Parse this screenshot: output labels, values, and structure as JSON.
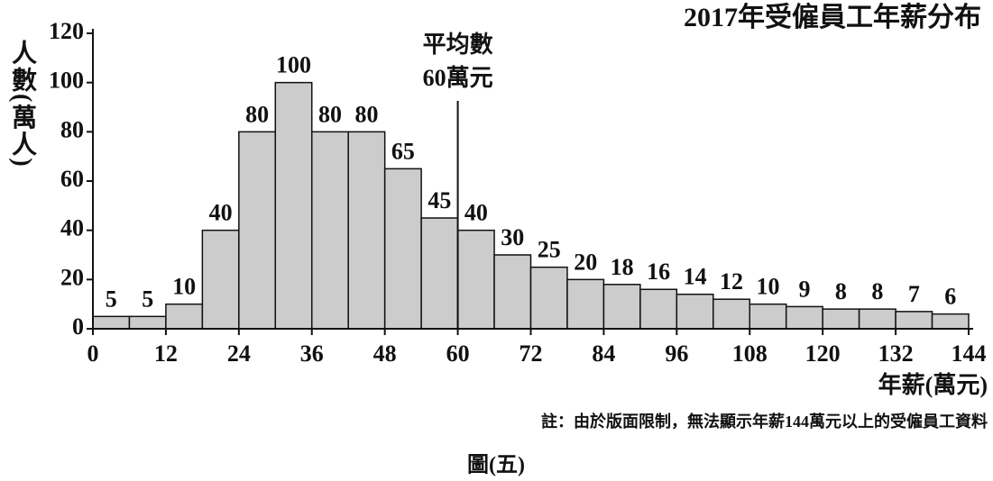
{
  "chart_data": {
    "type": "histogram",
    "title": "2017年受僱員工年薪分布",
    "y_label": "人數(萬人)",
    "x_label": "年薪(萬元)",
    "bins": [
      0,
      6,
      12,
      18,
      24,
      30,
      36,
      42,
      48,
      54,
      60,
      66,
      72,
      78,
      84,
      90,
      96,
      102,
      108,
      114,
      120,
      126,
      132,
      138,
      144
    ],
    "values": [
      5,
      5,
      10,
      40,
      80,
      100,
      80,
      80,
      65,
      45,
      40,
      30,
      25,
      20,
      18,
      16,
      14,
      12,
      10,
      9,
      8,
      8,
      7,
      6
    ],
    "color": "#cccccc",
    "xlim": [
      0,
      144
    ],
    "xticks": [
      0,
      12,
      24,
      36,
      48,
      60,
      72,
      84,
      96,
      108,
      120,
      132,
      144
    ],
    "ylim": [
      0,
      120
    ],
    "yticks": [
      0,
      20,
      40,
      60,
      80,
      100,
      120
    ],
    "annotation": {
      "lines": [
        "平均數",
        "60萬元"
      ],
      "x": 60
    },
    "note": "註：由於版面限制，無法顯示年薪144萬元以上的受僱員工資料",
    "caption": "圖(五)"
  }
}
